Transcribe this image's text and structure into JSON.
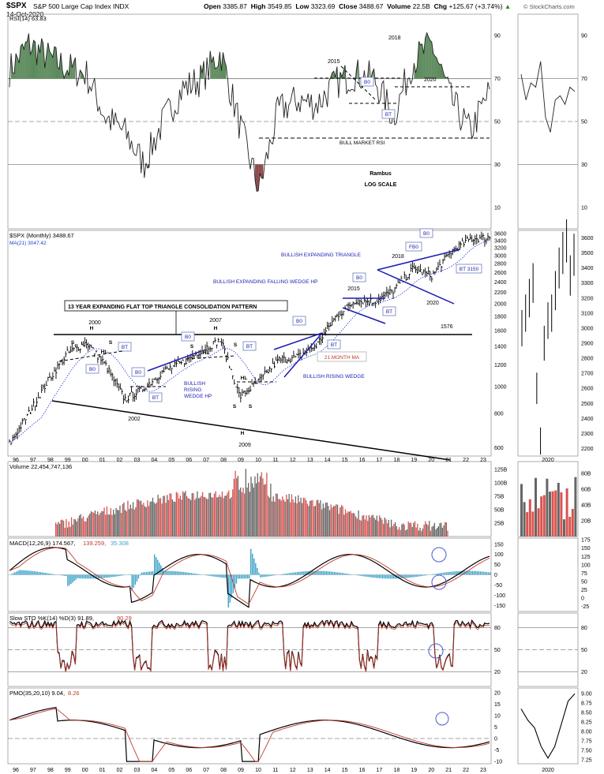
{
  "header": {
    "symbol": "$SPX",
    "name": "S&P 500 Large Cap Index INDX",
    "date": "14-Oct-2020",
    "open_label": "Open",
    "open": "3385.87",
    "high_label": "High",
    "high": "3549.85",
    "low_label": "Low",
    "low": "3323.69",
    "close_label": "Close",
    "close": "3488.67",
    "volume_label": "Volume",
    "volume": "22.5B",
    "chg_label": "Chg",
    "chg": "+125.67 (+3.74%)",
    "chg_arrow": "▲",
    "watermark": "© StockCharts.com"
  },
  "colors": {
    "up_fill": "#5c8a5c",
    "down_fill": "#8a4444",
    "trend_blue": "#1c1cb4",
    "ma_blue": "#1f3bd4",
    "signal_red": "#c0392b",
    "vol_red": "#d9534f",
    "vol_gray": "#666666",
    "hist_blue": "#3aa0c8"
  },
  "chart_data": [
    {
      "panel": "rsi",
      "type": "line",
      "title": "RSI(14) 63.83",
      "y_ticks": [
        "90",
        "70",
        "50",
        "30",
        "10"
      ],
      "ylim": [
        0,
        100
      ],
      "reference_lines": [
        70,
        50,
        30
      ],
      "x": [
        "96",
        "97",
        "98",
        "99",
        "00",
        "01",
        "02",
        "03",
        "04",
        "05",
        "06",
        "07",
        "08",
        "09",
        "10",
        "11",
        "12",
        "13",
        "14",
        "15",
        "16",
        "17",
        "18",
        "19",
        "20",
        "21"
      ],
      "values": [
        74,
        86,
        80,
        75,
        72,
        52,
        45,
        30,
        50,
        65,
        70,
        82,
        48,
        18,
        55,
        60,
        58,
        68,
        72,
        70,
        52,
        78,
        86,
        60,
        45,
        64
      ],
      "right_panel": {
        "title": "2020",
        "y_ticks": [
          "90",
          "70",
          "50",
          "30",
          "10"
        ]
      },
      "annotations": [
        "2015",
        "2018",
        "2020",
        "B0",
        "BT",
        "BULL MARKET RSI",
        "Rambus",
        "LOG SCALE"
      ]
    },
    {
      "panel": "price",
      "type": "bar",
      "title": "$SPX (Monthly) 3488.67",
      "ma_label": "MA(21) 3047.42",
      "scale": "log",
      "y_ticks": [
        "3600",
        "3400",
        "3200",
        "3000",
        "2800",
        "2600",
        "2400",
        "2200",
        "2000",
        "1800",
        "1600",
        "1400",
        "1200",
        "1000",
        "800",
        "600"
      ],
      "x": [
        "96",
        "97",
        "98",
        "99",
        "00",
        "01",
        "02",
        "03",
        "04",
        "05",
        "06",
        "07",
        "08",
        "09",
        "10",
        "11",
        "12",
        "13",
        "14",
        "15",
        "16",
        "17",
        "18",
        "19",
        "20",
        "21",
        "22",
        "23"
      ],
      "close_values": [
        620,
        800,
        1050,
        1320,
        1450,
        1200,
        900,
        990,
        1140,
        1220,
        1360,
        1480,
        920,
        1050,
        1250,
        1280,
        1420,
        1800,
        2060,
        2040,
        2240,
        2680,
        2530,
        3100,
        3450,
        3488
      ],
      "right_panel": {
        "title": "2020",
        "y_ticks": [
          "3600",
          "3500",
          "3400",
          "3300",
          "3200",
          "3100",
          "3000",
          "2900",
          "2800",
          "2700",
          "2600",
          "2500",
          "2400",
          "2300",
          "2200"
        ]
      },
      "annotations": {
        "pattern_title": "13  YEAR  EXPANDING FLAT TOP TRIANGLE CONSOLIDATION PATTERN",
        "labels": [
          "2000",
          "2007",
          "2002",
          "2009",
          "2015",
          "2018",
          "2020",
          "1576",
          "S",
          "H",
          "HL",
          "B0",
          "BT",
          "FB0",
          "BT 3150",
          "21 MONTH MA",
          "H",
          "S",
          "HL",
          "S",
          "H",
          "S",
          "S"
        ],
        "patterns": [
          "BULLISH EXPANDING TRIANGLE",
          "BULLISH EXPANDING FALLING WEDGE HP",
          "BULLISH RISING WEDGE",
          "BULLISH RISING WEDGE HP"
        ]
      }
    },
    {
      "panel": "volume",
      "type": "bar",
      "title": "Volume 22,454,747,136",
      "y_ticks": [
        "125B",
        "100B",
        "75B",
        "50B",
        "25B"
      ],
      "right_panel": {
        "y_ticks": [
          "80B",
          "60B",
          "40B",
          "20B"
        ]
      }
    },
    {
      "panel": "macd",
      "type": "line",
      "title_a": "MACD(12,26,9) 174.567,",
      "title_b": " 139.259,",
      "title_c": " 35.308",
      "y_ticks": [
        "150",
        "100",
        "50",
        "0",
        "-50",
        "-100",
        "-150"
      ],
      "right_panel": {
        "y_ticks": [
          "175",
          "150",
          "125",
          "100",
          "75",
          "50",
          "25",
          "0",
          "-25"
        ]
      }
    },
    {
      "panel": "sto",
      "type": "line",
      "title_a": "Slow STO %K(14) %D(3) 91.89,",
      "title_b": " 90.29",
      "y_ticks": [
        "80",
        "50",
        "20"
      ],
      "right_panel": {
        "y_ticks": [
          "80",
          "50",
          "20"
        ]
      }
    },
    {
      "panel": "pmo",
      "type": "line",
      "title_a": "PMO(35,20,10) 9.04,",
      "title_b": " 8.26",
      "y_ticks": [
        "20",
        "15",
        "10",
        "5",
        "0",
        "-5",
        "-10"
      ],
      "right_panel": {
        "y_ticks": [
          "9.00",
          "8.75",
          "8.50",
          "8.25",
          "8.00",
          "7.75",
          "7.50",
          "7.25"
        ]
      },
      "x_ticks": [
        "96",
        "97",
        "98",
        "99",
        "00",
        "01",
        "02",
        "03",
        "04",
        "05",
        "06",
        "07",
        "08",
        "09",
        "10",
        "11",
        "12",
        "13",
        "14",
        "15",
        "16",
        "17",
        "18",
        "19",
        "20",
        "21",
        "22",
        "23"
      ],
      "right_x": "2020"
    }
  ]
}
